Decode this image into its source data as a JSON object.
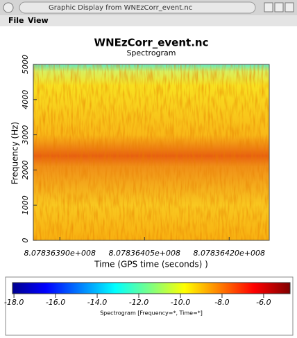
{
  "window": {
    "title": "Graphic Display from WNEzCorr_event.nc"
  },
  "menu": [
    "File",
    "View"
  ],
  "chart_data": {
    "type": "heatmap",
    "title": "WNEzCorr_event.nc",
    "subtitle": "Spectrogram",
    "x_label": "Time (GPS time (seconds) )",
    "y_label": "Frequency (Hz)",
    "xlim": [
      807836385.3,
      807836427.1
    ],
    "xticks": [
      {
        "value": 807836390,
        "label": "8.07836390e+008"
      },
      {
        "value": 807836405,
        "label": "8.07836405e+008"
      },
      {
        "value": 807836420,
        "label": "8.07836420e+008"
      }
    ],
    "ylim": [
      0,
      5000
    ],
    "yticks": [
      0,
      1000,
      2000,
      3000,
      4000,
      5000
    ],
    "colorbar": {
      "label": "Spectrogram [Frequency=*, Time=*]",
      "lim": [
        -18.07,
        -4.73
      ],
      "ticks": [
        {
          "value": -18,
          "label": "-18.0"
        },
        {
          "value": -16,
          "label": "-16.0"
        },
        {
          "value": -14,
          "label": "-14.0"
        },
        {
          "value": -12,
          "label": "-12.0"
        },
        {
          "value": -10,
          "label": "-10.0"
        },
        {
          "value": -8,
          "label": "-8.0"
        },
        {
          "value": -6,
          "label": "-6.0"
        }
      ]
    }
  }
}
